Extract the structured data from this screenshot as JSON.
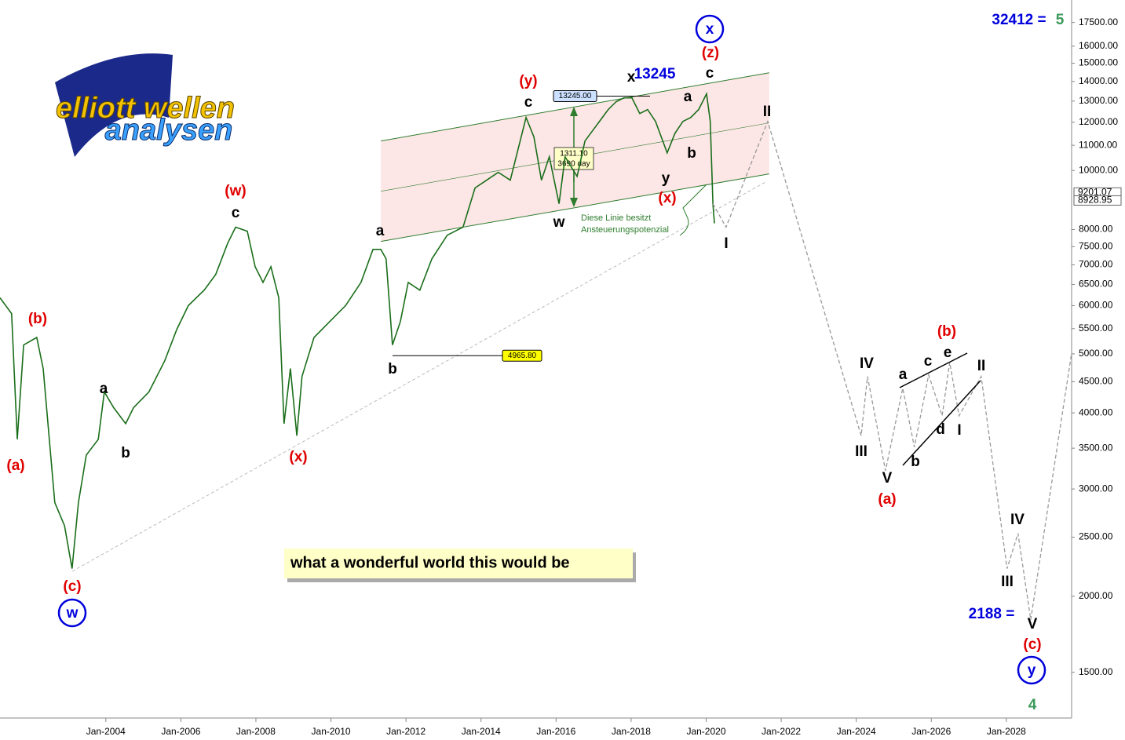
{
  "chart_data": {
    "type": "line",
    "log_scale": true,
    "xlim": [
      2001.18,
      2029.74
    ],
    "ylim": [
      1262,
      19050
    ],
    "xticks": [
      {
        "value": 2004,
        "label": "Jan-2004"
      },
      {
        "value": 2006,
        "label": "Jan-2006"
      },
      {
        "value": 2008,
        "label": "Jan-2008"
      },
      {
        "value": 2010,
        "label": "Jan-2010"
      },
      {
        "value": 2012,
        "label": "Jan-2012"
      },
      {
        "value": 2014,
        "label": "Jan-2014"
      },
      {
        "value": 2016,
        "label": "Jan-2016"
      },
      {
        "value": 2018,
        "label": "Jan-2018"
      },
      {
        "value": 2020,
        "label": "Jan-2020"
      },
      {
        "value": 2022,
        "label": "Jan-2022"
      },
      {
        "value": 2024,
        "label": "Jan-2024"
      },
      {
        "value": 2026,
        "label": "Jan-2026"
      },
      {
        "value": 2028,
        "label": "Jan-2028"
      }
    ],
    "yticks": [
      {
        "value": 1500,
        "label": "1500.00"
      },
      {
        "value": 2000,
        "label": "2000.00"
      },
      {
        "value": 2500,
        "label": "2500.00"
      },
      {
        "value": 3000,
        "label": "3000.00"
      },
      {
        "value": 3500,
        "label": "3500.00"
      },
      {
        "value": 4000,
        "label": "4000.00"
      },
      {
        "value": 4500,
        "label": "4500.00"
      },
      {
        "value": 5000,
        "label": "5000.00"
      },
      {
        "value": 5500,
        "label": "5500.00"
      },
      {
        "value": 6000,
        "label": "6000.00"
      },
      {
        "value": 6500,
        "label": "6500.00"
      },
      {
        "value": 7000,
        "label": "7000.00"
      },
      {
        "value": 7500,
        "label": "7500.00"
      },
      {
        "value": 8000,
        "label": "8000.00"
      },
      {
        "value": 10000,
        "label": "10000.00"
      },
      {
        "value": 11000,
        "label": "11000.00"
      },
      {
        "value": 12000,
        "label": "12000.00"
      },
      {
        "value": 13000,
        "label": "13000.00"
      },
      {
        "value": 14000,
        "label": "14000.00"
      },
      {
        "value": 15000,
        "label": "15000.00"
      },
      {
        "value": 16000,
        "label": "16000.00"
      },
      {
        "value": 17500,
        "label": "17500.00"
      }
    ],
    "series": [
      {
        "name": "price",
        "color": "#1a6e1a",
        "style": "solid",
        "x": [
          2001.18,
          2001.49,
          2001.64,
          2001.81,
          2002.16,
          2002.33,
          2002.64,
          2002.9,
          2003.1,
          2003.27,
          2003.48,
          2003.8,
          2003.96,
          2004.21,
          2004.53,
          2004.74,
          2005.15,
          2005.57,
          2005.89,
          2006.2,
          2006.62,
          2006.93,
          2007.25,
          2007.46,
          2007.77,
          2007.98,
          2008.19,
          2008.4,
          2008.61,
          2008.75,
          2008.92,
          2009.09,
          2009.23,
          2009.55,
          2009.97,
          2010.39,
          2010.8,
          2011.12,
          2011.33,
          2011.47,
          2011.64,
          2011.85,
          2012.06,
          2012.37,
          2012.69,
          2013.1,
          2013.52,
          2013.84,
          2014.15,
          2014.46,
          2014.78,
          2014.99,
          2015.2,
          2015.41,
          2015.61,
          2015.82,
          2016.08,
          2016.24,
          2016.56,
          2016.77,
          2017.08,
          2017.39,
          2017.6,
          2017.81,
          2018.02,
          2018.23,
          2018.44,
          2018.65,
          2018.96,
          2019.17,
          2019.38,
          2019.59,
          2019.8,
          2020.01,
          2020.11,
          2020.18,
          2020.22
        ],
        "values": [
          6180,
          5820,
          3620,
          5170,
          5320,
          4730,
          2850,
          2610,
          2220,
          2850,
          3410,
          3620,
          4330,
          4080,
          3840,
          4080,
          4330,
          4870,
          5480,
          6000,
          6360,
          6750,
          7600,
          8070,
          7950,
          6950,
          6550,
          6950,
          6180,
          3840,
          4730,
          3670,
          4590,
          5320,
          5650,
          6000,
          6550,
          7420,
          7420,
          7160,
          5170,
          5650,
          6550,
          6360,
          7160,
          7830,
          8070,
          9360,
          9640,
          9930,
          9640,
          10850,
          12220,
          11350,
          9640,
          10530,
          8820,
          10530,
          9780,
          11180,
          11860,
          12590,
          12970,
          13160,
          13160,
          12400,
          12590,
          12040,
          10690,
          11510,
          12040,
          12220,
          12590,
          13360,
          12040,
          8820,
          8190
        ]
      },
      {
        "name": "forecast",
        "color": "#999999",
        "style": "dashed",
        "x": [
          2020.18,
          2020.53,
          2021.64,
          2024.13,
          2024.3,
          2024.78,
          2025.24,
          2025.55,
          2025.93,
          2026.29,
          2026.49,
          2026.74,
          2027.33,
          2028.02,
          2028.31,
          2028.65,
          2029.74
        ],
        "values": [
          8820,
          8070,
          12040,
          3670,
          4590,
          3215,
          4391,
          3514,
          4617,
          3957,
          4842,
          3957,
          4590,
          2220,
          2536,
          1830,
          5018
        ]
      }
    ],
    "channel": {
      "x": [
        2011.33,
        2021.68
      ],
      "upper": [
        11180,
        14470
      ],
      "middle": [
        9245,
        11970
      ],
      "lower": [
        7648,
        9870
      ]
    },
    "level_labels": [
      {
        "value": 13245,
        "label": "13245.00",
        "color": "#cce0ff"
      },
      {
        "value": 4965.8,
        "label": "4965.80",
        "color": "#ffff00"
      }
    ],
    "price_labels": [
      {
        "value": 9201.07,
        "label": "9201.07"
      },
      {
        "value": 8928.95,
        "label": "8928.95"
      }
    ],
    "measure": [
      "1311.10",
      "3690 day"
    ],
    "note": [
      "Diese Linie besitzt",
      "Ansteuerungspotenzial"
    ],
    "banner": "what a wonderful world this would be",
    "logo": [
      "elliott wellen",
      "analysen"
    ],
    "annotations": [
      {
        "text": "(a)",
        "color": "#e00000"
      },
      {
        "text": "(b)",
        "color": "#e00000"
      },
      {
        "text": "(c)",
        "color": "#e00000"
      },
      {
        "text": "w",
        "color": "#0000dd",
        "circled": true
      },
      {
        "text": "a",
        "color": "#000"
      },
      {
        "text": "b",
        "color": "#000"
      },
      {
        "text": "(w)",
        "color": "#e00000"
      },
      {
        "text": "c",
        "color": "#000"
      },
      {
        "text": "(x)",
        "color": "#e00000"
      },
      {
        "text": "a",
        "color": "#000"
      },
      {
        "text": "b",
        "color": "#000"
      },
      {
        "text": "(y)",
        "color": "#e00000"
      },
      {
        "text": "c",
        "color": "#000"
      },
      {
        "text": "w",
        "color": "#000"
      },
      {
        "text": "x",
        "color": "#000"
      },
      {
        "text": "13245",
        "color": "#0000dd"
      },
      {
        "text": "y",
        "color": "#000"
      },
      {
        "text": "(x)",
        "color": "#e00000"
      },
      {
        "text": "a",
        "color": "#000"
      },
      {
        "text": "b",
        "color": "#000"
      },
      {
        "text": "c",
        "color": "#000"
      },
      {
        "text": "(z)",
        "color": "#e00000"
      },
      {
        "text": "x",
        "color": "#0000dd",
        "circled": true
      },
      {
        "text": "II",
        "color": "#000"
      },
      {
        "text": "I",
        "color": "#000"
      },
      {
        "text": "IV",
        "color": "#000"
      },
      {
        "text": "III",
        "color": "#000"
      },
      {
        "text": "V",
        "color": "#000"
      },
      {
        "text": "(a)",
        "color": "#e00000"
      },
      {
        "text": "(b)",
        "color": "#e00000"
      },
      {
        "text": "a",
        "color": "#000"
      },
      {
        "text": "c",
        "color": "#000"
      },
      {
        "text": "e",
        "color": "#000"
      },
      {
        "text": "II",
        "color": "#000"
      },
      {
        "text": "d",
        "color": "#000"
      },
      {
        "text": "I",
        "color": "#000"
      },
      {
        "text": "b",
        "color": "#000"
      },
      {
        "text": "IV",
        "color": "#000"
      },
      {
        "text": "III",
        "color": "#000"
      },
      {
        "text": "V",
        "color": "#000"
      },
      {
        "text": "(c)",
        "color": "#e00000"
      },
      {
        "text": "y",
        "color": "#0000dd",
        "circled": true
      },
      {
        "text": "2188 =",
        "color": "#0000dd"
      },
      {
        "text": "4",
        "color": "#3a9a5a",
        "big": true
      },
      {
        "text": "32412 =",
        "color": "#0000dd"
      },
      {
        "text": "5",
        "color": "#3a9a5a",
        "big": true
      }
    ]
  }
}
